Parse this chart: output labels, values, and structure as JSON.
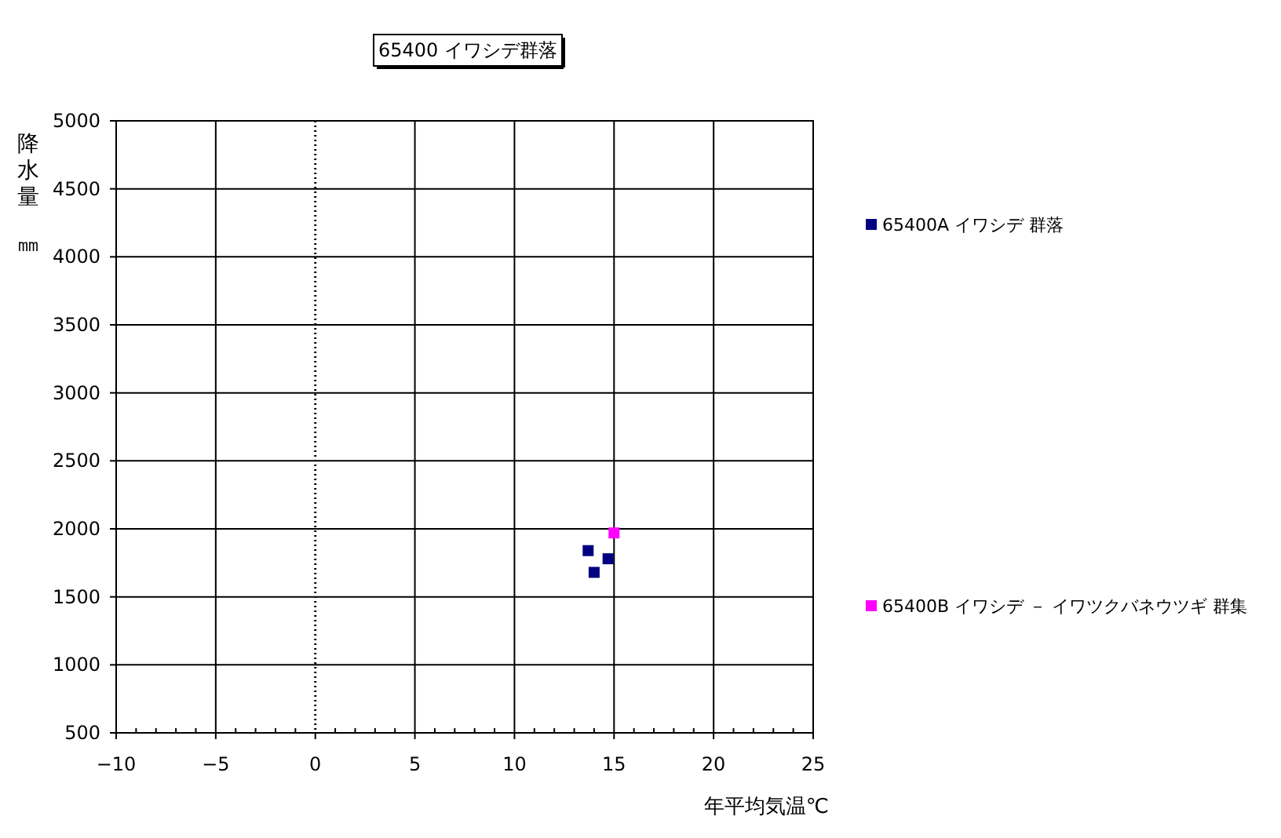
{
  "chart_data": {
    "type": "scatter",
    "title": "65400 イワシデ群落",
    "xlabel": "年平均気温℃",
    "ylabel": "降水量㎜",
    "xlim": [
      -10,
      25
    ],
    "xticks": [
      -10,
      -5,
      0,
      5,
      10,
      15,
      20,
      25
    ],
    "ylim": [
      500,
      5000
    ],
    "yticks": [
      500,
      1000,
      1500,
      2000,
      2500,
      3000,
      3500,
      4000,
      4500,
      5000
    ],
    "grid": true,
    "legend": "right",
    "marker": "square",
    "ref_lines": [
      {
        "axis": "x",
        "value": 0,
        "line_style": "dotted",
        "color": "#000000"
      }
    ],
    "series": [
      {
        "name": "65400A イワシデ 群落",
        "color": "#000080",
        "x": [
          13.7,
          14.7,
          14.0
        ],
        "values": [
          1840,
          1780,
          1680
        ]
      },
      {
        "name": "65400B イワシデ － イワツクバネウツギ 群集",
        "color": "#ff00ff",
        "x": [
          15.0
        ],
        "values": [
          1970
        ]
      }
    ]
  }
}
